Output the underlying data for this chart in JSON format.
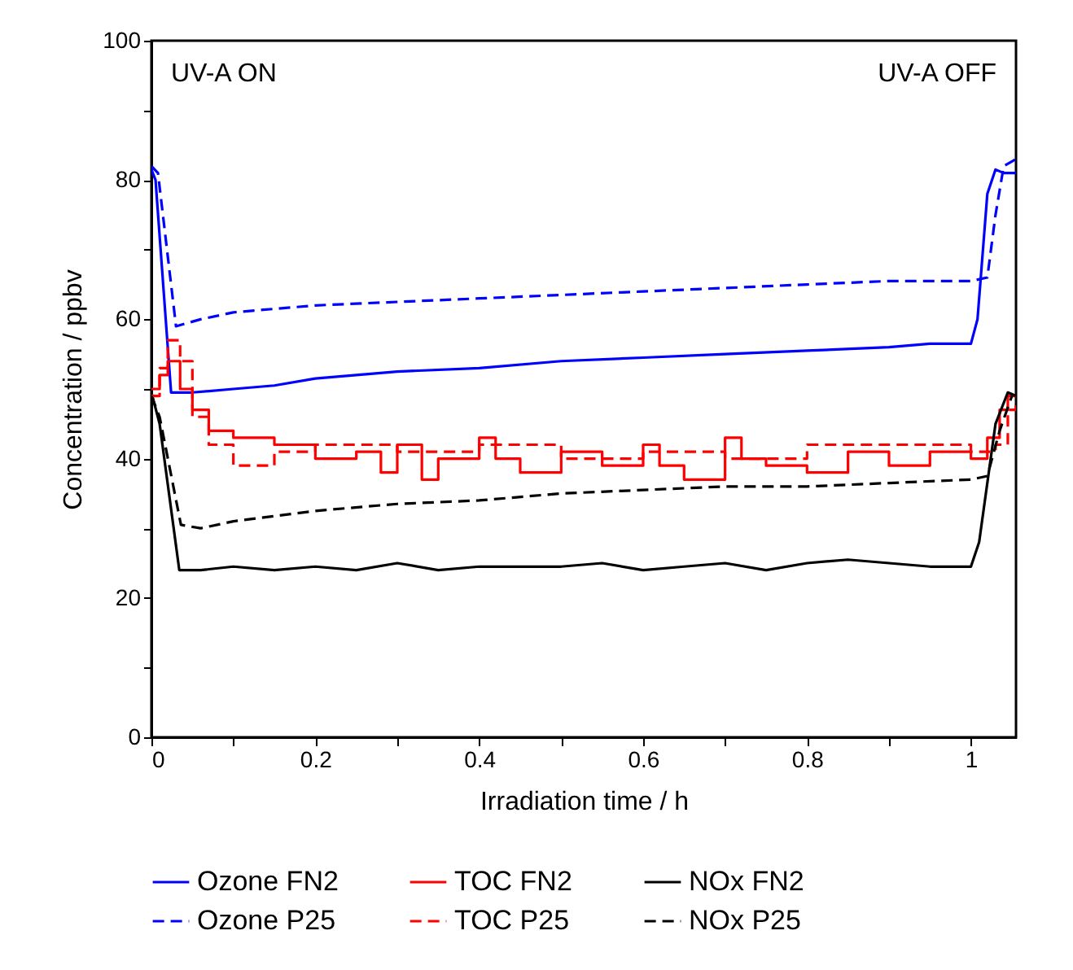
{
  "chart_data": {
    "type": "line",
    "xlabel": "Irradiation time / h",
    "ylabel": "Concentration / ppbv",
    "annotations": [
      "UV-A ON",
      "UV-A OFF"
    ],
    "xlim": [
      0,
      1.055
    ],
    "ylim": [
      0,
      100
    ],
    "xticks": [
      0,
      {
        "value": 0.1,
        "label": null
      },
      0.2,
      {
        "value": 0.3,
        "label": null
      },
      0.4,
      {
        "value": 0.5,
        "label": null
      },
      0.6,
      {
        "value": 0.7,
        "label": null
      },
      0.8,
      {
        "value": 0.9,
        "label": null
      },
      1
    ],
    "yticks": [
      0,
      {
        "value": 10,
        "label": null
      },
      20,
      {
        "value": 30,
        "label": null
      },
      40,
      {
        "value": 50,
        "label": null
      },
      60,
      {
        "value": 70,
        "label": null
      },
      80,
      {
        "value": 90,
        "label": null
      },
      100
    ],
    "grid": false,
    "legend": "bottom",
    "series": [
      {
        "name": "Ozone FN2",
        "color": "#0000ff",
        "line_style": "solid",
        "x": [
          0,
          0.005,
          0.024,
          0.05,
          0.1,
          0.15,
          0.2,
          0.3,
          0.4,
          0.5,
          0.6,
          0.7,
          0.8,
          0.9,
          0.95,
          1.0,
          1.008,
          1.02,
          1.03,
          1.04,
          1.055
        ],
        "values": [
          81.5,
          80,
          49.5,
          49.5,
          50,
          50.5,
          51.5,
          52.5,
          53,
          54,
          54.5,
          55,
          55.5,
          56,
          56.5,
          56.5,
          60,
          78,
          81.5,
          81,
          81
        ]
      },
      {
        "name": "TOC FN2",
        "color": "#ff0000",
        "type": "step",
        "line_style": "solid",
        "x": [
          0,
          0.01,
          0.02,
          0.035,
          0.05,
          0.07,
          0.1,
          0.15,
          0.2,
          0.25,
          0.28,
          0.3,
          0.33,
          0.35,
          0.4,
          0.42,
          0.45,
          0.5,
          0.55,
          0.6,
          0.62,
          0.65,
          0.7,
          0.72,
          0.75,
          0.8,
          0.85,
          0.9,
          0.95,
          1.0,
          1.02,
          1.035,
          1.045,
          1.055
        ],
        "values": [
          50,
          52,
          54,
          50,
          47,
          44,
          43,
          42,
          40,
          41,
          38,
          42,
          37,
          40,
          43,
          40,
          38,
          41,
          39,
          42,
          39,
          37,
          43,
          40,
          39,
          38,
          41,
          39,
          41,
          40,
          43,
          47,
          49,
          49
        ]
      },
      {
        "name": "NOx FN2",
        "color": "#000000",
        "line_style": "solid",
        "x": [
          0,
          0.01,
          0.034,
          0.06,
          0.1,
          0.15,
          0.2,
          0.25,
          0.3,
          0.35,
          0.4,
          0.5,
          0.55,
          0.6,
          0.65,
          0.7,
          0.75,
          0.8,
          0.85,
          0.9,
          0.95,
          1.0,
          1.01,
          1.03,
          1.045,
          1.055
        ],
        "values": [
          49.5,
          45,
          24,
          24,
          24.5,
          24,
          24.5,
          24,
          25,
          24,
          24.5,
          24.5,
          25,
          24,
          24.5,
          25,
          24,
          25,
          25.5,
          25,
          24.5,
          24.5,
          28,
          45,
          49.5,
          49
        ]
      },
      {
        "name": "Ozone P25",
        "color": "#0000ff",
        "line_style": "dashed",
        "x": [
          0,
          0.008,
          0.03,
          0.06,
          0.1,
          0.2,
          0.3,
          0.4,
          0.5,
          0.6,
          0.7,
          0.8,
          0.9,
          1.0,
          1.02,
          1.03,
          1.04,
          1.055
        ],
        "values": [
          82,
          81,
          59,
          60,
          61,
          62,
          62.5,
          63,
          63.5,
          64,
          64.5,
          65,
          65.5,
          65.5,
          66,
          75,
          82,
          83
        ]
      },
      {
        "name": "TOC P25",
        "color": "#ff0000",
        "type": "step",
        "line_style": "dashed",
        "x": [
          0,
          0.01,
          0.02,
          0.035,
          0.05,
          0.07,
          0.1,
          0.15,
          0.2,
          0.3,
          0.4,
          0.5,
          0.6,
          0.7,
          0.8,
          0.9,
          1.0,
          1.03,
          1.045,
          1.055
        ],
        "values": [
          49,
          53,
          57,
          54,
          46,
          42,
          39,
          41,
          42,
          41,
          42,
          40,
          41,
          40,
          42,
          42,
          41,
          42,
          47,
          48
        ]
      },
      {
        "name": "NOx P25",
        "color": "#000000",
        "line_style": "dashed",
        "x": [
          0,
          0.01,
          0.036,
          0.06,
          0.1,
          0.2,
          0.3,
          0.4,
          0.5,
          0.6,
          0.7,
          0.8,
          0.9,
          1.0,
          1.02,
          1.035,
          1.05
        ],
        "values": [
          49,
          46,
          30.5,
          30,
          31,
          32.5,
          33.5,
          34,
          35,
          35.5,
          36,
          36,
          36.5,
          37,
          37.5,
          44,
          49
        ]
      }
    ]
  }
}
